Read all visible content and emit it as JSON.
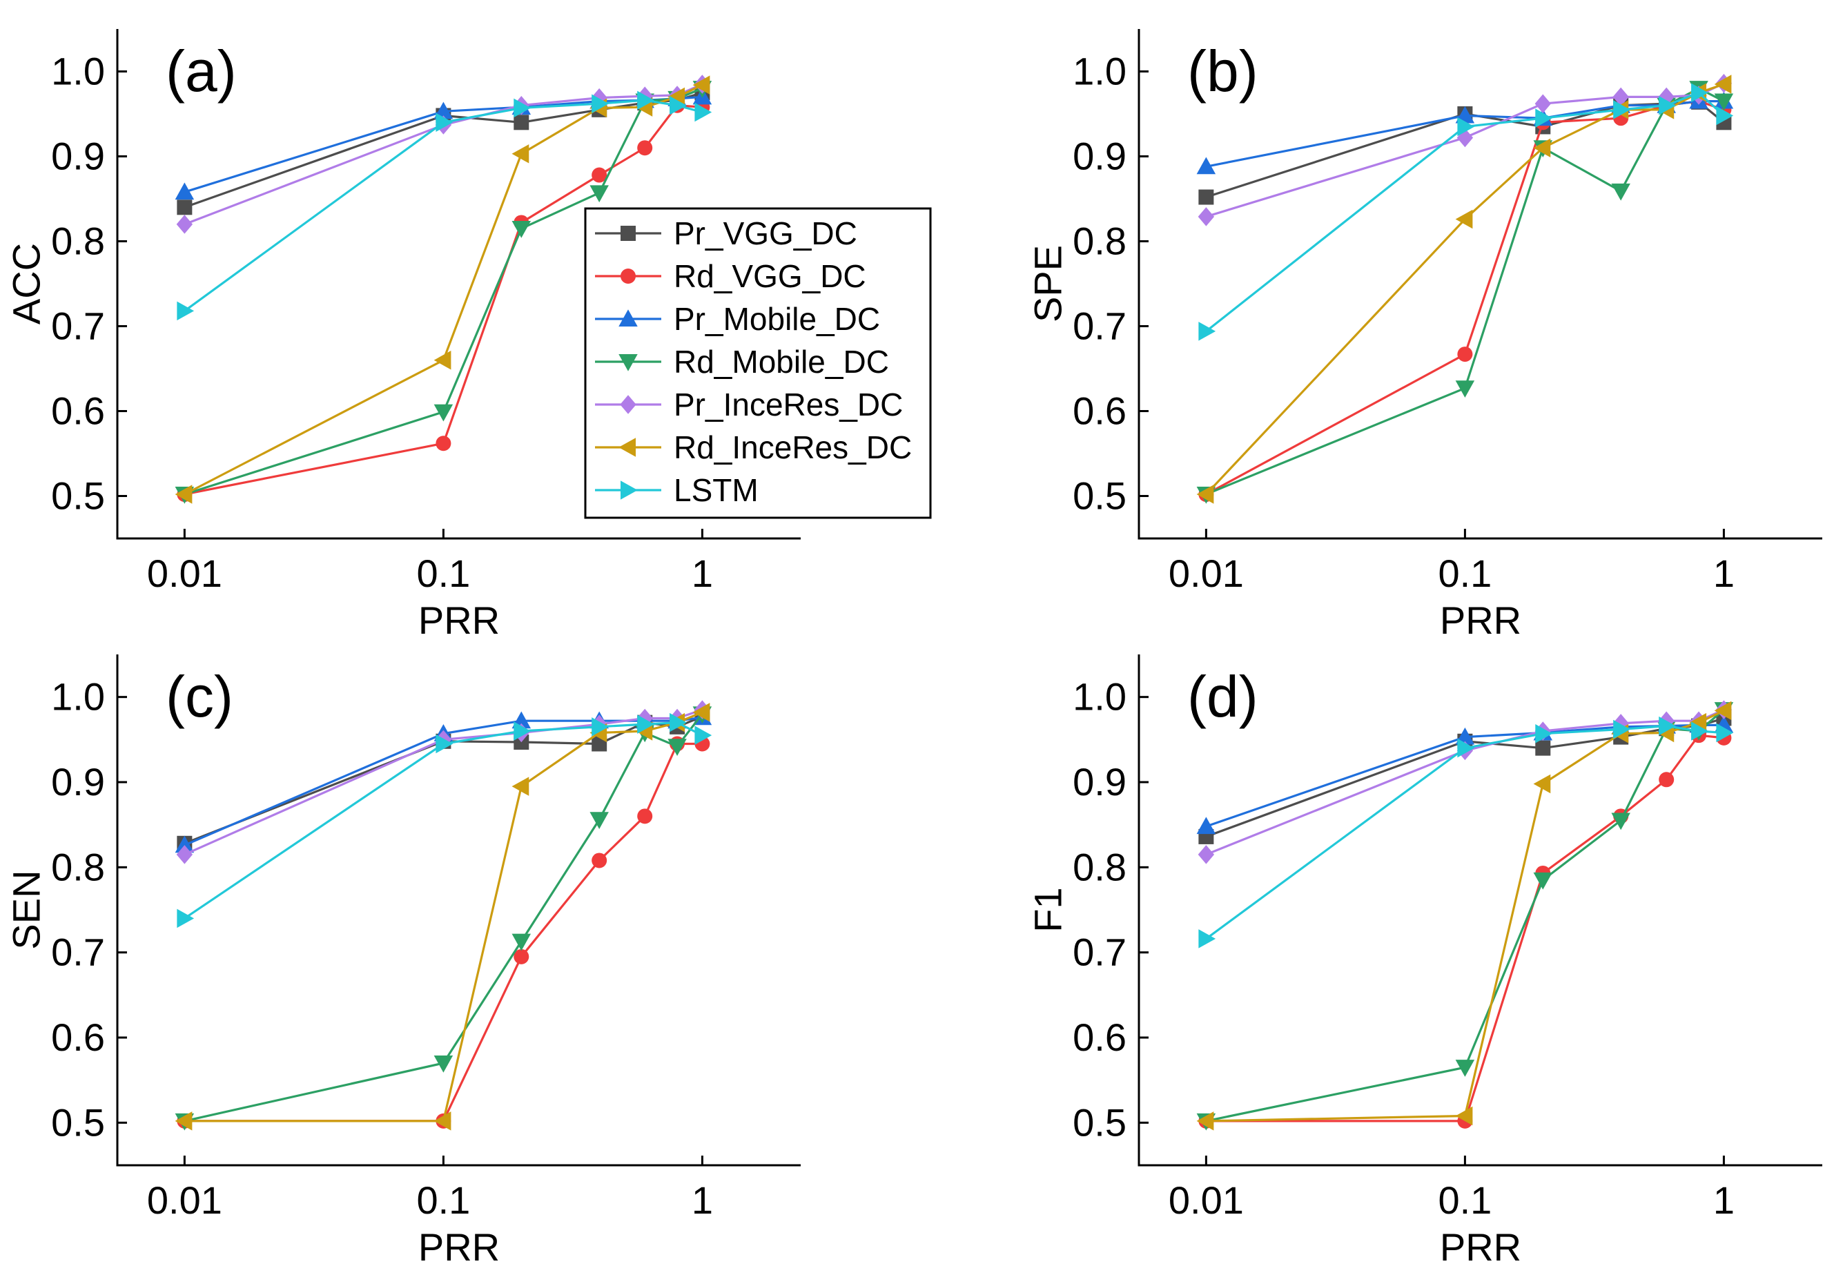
{
  "chart_data": [
    {
      "type": "line",
      "panel_label": "(a)",
      "xlabel": "PRR",
      "ylabel": "ACC",
      "xscale": "log",
      "xlim": [
        0.0055,
        2.4
      ],
      "ylim": [
        0.45,
        1.05
      ],
      "xticks": [
        0.01,
        0.1,
        1
      ],
      "xtick_labels": [
        "0.01",
        "0.1",
        "1"
      ],
      "yticks": [
        0.5,
        0.6,
        0.7,
        0.8,
        0.9,
        1.0
      ],
      "ytick_labels": [
        "0.5",
        "0.6",
        "0.7",
        "0.8",
        "0.9",
        "1.0"
      ],
      "legend_position": "center-right",
      "series": [
        {
          "name": "Pr_VGG_DC",
          "x": [
            0.01,
            0.1,
            0.2,
            0.4,
            0.6,
            0.8,
            1
          ],
          "y": [
            0.84,
            0.948,
            0.94,
            0.955,
            0.963,
            0.966,
            0.975
          ]
        },
        {
          "name": "Rd_VGG_DC",
          "x": [
            0.01,
            0.1,
            0.2,
            0.4,
            0.6,
            0.8,
            1
          ],
          "y": [
            0.502,
            0.562,
            0.822,
            0.878,
            0.91,
            0.96,
            0.958
          ]
        },
        {
          "name": "Pr_Mobile_DC",
          "x": [
            0.01,
            0.1,
            0.2,
            0.4,
            0.6,
            0.8,
            1
          ],
          "y": [
            0.858,
            0.953,
            0.958,
            0.965,
            0.966,
            0.968,
            0.97
          ]
        },
        {
          "name": "Rd_Mobile_DC",
          "x": [
            0.01,
            0.1,
            0.2,
            0.4,
            0.6,
            0.8,
            1
          ],
          "y": [
            0.502,
            0.599,
            0.815,
            0.857,
            0.965,
            0.968,
            0.98
          ]
        },
        {
          "name": "Pr_InceRes_DC",
          "x": [
            0.01,
            0.1,
            0.2,
            0.4,
            0.6,
            0.8,
            1
          ],
          "y": [
            0.82,
            0.937,
            0.96,
            0.969,
            0.971,
            0.972,
            0.985
          ]
        },
        {
          "name": "Rd_InceRes_DC",
          "x": [
            0.01,
            0.1,
            0.2,
            0.4,
            0.6,
            0.8,
            1
          ],
          "y": [
            0.502,
            0.66,
            0.903,
            0.957,
            0.958,
            0.97,
            0.984
          ]
        },
        {
          "name": "LSTM",
          "x": [
            0.01,
            0.1,
            0.2,
            0.4,
            0.6,
            0.8,
            1
          ],
          "y": [
            0.718,
            0.94,
            0.957,
            0.962,
            0.966,
            0.96,
            0.952
          ]
        }
      ]
    },
    {
      "type": "line",
      "panel_label": "(b)",
      "xlabel": "PRR",
      "ylabel": "SPE",
      "xscale": "log",
      "xlim": [
        0.0055,
        2.4
      ],
      "ylim": [
        0.45,
        1.05
      ],
      "xticks": [
        0.01,
        0.1,
        1
      ],
      "xtick_labels": [
        "0.01",
        "0.1",
        "1"
      ],
      "yticks": [
        0.5,
        0.6,
        0.7,
        0.8,
        0.9,
        1.0
      ],
      "ytick_labels": [
        "0.5",
        "0.6",
        "0.7",
        "0.8",
        "0.9",
        "1.0"
      ],
      "series": [
        {
          "name": "Pr_VGG_DC",
          "x": [
            0.01,
            0.1,
            0.2,
            0.4,
            0.6,
            0.8,
            1
          ],
          "y": [
            0.852,
            0.95,
            0.935,
            0.96,
            0.962,
            0.964,
            0.94
          ]
        },
        {
          "name": "Rd_VGG_DC",
          "x": [
            0.01,
            0.1,
            0.2,
            0.4,
            0.6,
            0.8,
            1
          ],
          "y": [
            0.502,
            0.667,
            0.94,
            0.945,
            0.96,
            0.965,
            0.955
          ]
        },
        {
          "name": "Pr_Mobile_DC",
          "x": [
            0.01,
            0.1,
            0.2,
            0.4,
            0.6,
            0.8,
            1
          ],
          "y": [
            0.888,
            0.948,
            0.945,
            0.96,
            0.96,
            0.965,
            0.965
          ]
        },
        {
          "name": "Rd_Mobile_DC",
          "x": [
            0.01,
            0.1,
            0.2,
            0.4,
            0.6,
            0.8,
            1
          ],
          "y": [
            0.502,
            0.627,
            0.91,
            0.859,
            0.96,
            0.98,
            0.965
          ]
        },
        {
          "name": "Pr_InceRes_DC",
          "x": [
            0.01,
            0.1,
            0.2,
            0.4,
            0.6,
            0.8,
            1
          ],
          "y": [
            0.829,
            0.922,
            0.962,
            0.97,
            0.97,
            0.972,
            0.986
          ]
        },
        {
          "name": "Rd_InceRes_DC",
          "x": [
            0.01,
            0.1,
            0.2,
            0.4,
            0.6,
            0.8,
            1
          ],
          "y": [
            0.502,
            0.826,
            0.91,
            0.955,
            0.955,
            0.975,
            0.985
          ]
        },
        {
          "name": "LSTM",
          "x": [
            0.01,
            0.1,
            0.2,
            0.4,
            0.6,
            0.8,
            1
          ],
          "y": [
            0.694,
            0.935,
            0.945,
            0.955,
            0.96,
            0.975,
            0.948
          ]
        }
      ]
    },
    {
      "type": "line",
      "panel_label": "(c)",
      "xlabel": "PRR",
      "ylabel": "SEN",
      "xscale": "log",
      "xlim": [
        0.0055,
        2.4
      ],
      "ylim": [
        0.45,
        1.05
      ],
      "xticks": [
        0.01,
        0.1,
        1
      ],
      "xtick_labels": [
        "0.01",
        "0.1",
        "1"
      ],
      "yticks": [
        0.5,
        0.6,
        0.7,
        0.8,
        0.9,
        1.0
      ],
      "ytick_labels": [
        "0.5",
        "0.6",
        "0.7",
        "0.8",
        "0.9",
        "1.0"
      ],
      "series": [
        {
          "name": "Pr_VGG_DC",
          "x": [
            0.01,
            0.1,
            0.2,
            0.4,
            0.6,
            0.8,
            1
          ],
          "y": [
            0.828,
            0.948,
            0.947,
            0.945,
            0.97,
            0.965,
            0.977
          ]
        },
        {
          "name": "Rd_VGG_DC",
          "x": [
            0.01,
            0.1,
            0.2,
            0.4,
            0.6,
            0.8,
            1
          ],
          "y": [
            0.502,
            0.502,
            0.695,
            0.808,
            0.86,
            0.945,
            0.945
          ]
        },
        {
          "name": "Pr_Mobile_DC",
          "x": [
            0.01,
            0.1,
            0.2,
            0.4,
            0.6,
            0.8,
            1
          ],
          "y": [
            0.826,
            0.957,
            0.972,
            0.972,
            0.972,
            0.972,
            0.976
          ]
        },
        {
          "name": "Rd_Mobile_DC",
          "x": [
            0.01,
            0.1,
            0.2,
            0.4,
            0.6,
            0.8,
            1
          ],
          "y": [
            0.502,
            0.57,
            0.713,
            0.856,
            0.958,
            0.942,
            0.98
          ]
        },
        {
          "name": "Pr_InceRes_DC",
          "x": [
            0.01,
            0.1,
            0.2,
            0.4,
            0.6,
            0.8,
            1
          ],
          "y": [
            0.815,
            0.95,
            0.958,
            0.968,
            0.975,
            0.975,
            0.985
          ]
        },
        {
          "name": "Rd_InceRes_DC",
          "x": [
            0.01,
            0.1,
            0.2,
            0.4,
            0.6,
            0.8,
            1
          ],
          "y": [
            0.502,
            0.502,
            0.895,
            0.958,
            0.96,
            0.97,
            0.982
          ]
        },
        {
          "name": "LSTM",
          "x": [
            0.01,
            0.1,
            0.2,
            0.4,
            0.6,
            0.8,
            1
          ],
          "y": [
            0.74,
            0.945,
            0.96,
            0.965,
            0.968,
            0.97,
            0.955
          ]
        }
      ]
    },
    {
      "type": "line",
      "panel_label": "(d)",
      "xlabel": "PRR",
      "ylabel": "F1",
      "xscale": "log",
      "xlim": [
        0.0055,
        2.4
      ],
      "ylim": [
        0.45,
        1.05
      ],
      "xticks": [
        0.01,
        0.1,
        1
      ],
      "xtick_labels": [
        "0.01",
        "0.1",
        "1"
      ],
      "yticks": [
        0.5,
        0.6,
        0.7,
        0.8,
        0.9,
        1.0
      ],
      "ytick_labels": [
        "0.5",
        "0.6",
        "0.7",
        "0.8",
        "0.9",
        "1.0"
      ],
      "series": [
        {
          "name": "Pr_VGG_DC",
          "x": [
            0.01,
            0.1,
            0.2,
            0.4,
            0.6,
            0.8,
            1
          ],
          "y": [
            0.836,
            0.948,
            0.94,
            0.953,
            0.963,
            0.966,
            0.975
          ]
        },
        {
          "name": "Rd_VGG_DC",
          "x": [
            0.01,
            0.1,
            0.2,
            0.4,
            0.6,
            0.8,
            1
          ],
          "y": [
            0.502,
            0.502,
            0.793,
            0.86,
            0.903,
            0.955,
            0.952
          ]
        },
        {
          "name": "Pr_Mobile_DC",
          "x": [
            0.01,
            0.1,
            0.2,
            0.4,
            0.6,
            0.8,
            1
          ],
          "y": [
            0.848,
            0.953,
            0.958,
            0.965,
            0.966,
            0.967,
            0.967
          ]
        },
        {
          "name": "Rd_Mobile_DC",
          "x": [
            0.01,
            0.1,
            0.2,
            0.4,
            0.6,
            0.8,
            1
          ],
          "y": [
            0.502,
            0.565,
            0.785,
            0.855,
            0.963,
            0.96,
            0.985
          ]
        },
        {
          "name": "Pr_InceRes_DC",
          "x": [
            0.01,
            0.1,
            0.2,
            0.4,
            0.6,
            0.8,
            1
          ],
          "y": [
            0.815,
            0.937,
            0.96,
            0.969,
            0.972,
            0.972,
            0.985
          ]
        },
        {
          "name": "Rd_InceRes_DC",
          "x": [
            0.01,
            0.1,
            0.2,
            0.4,
            0.6,
            0.8,
            1
          ],
          "y": [
            0.502,
            0.508,
            0.898,
            0.957,
            0.958,
            0.97,
            0.984
          ]
        },
        {
          "name": "LSTM",
          "x": [
            0.01,
            0.1,
            0.2,
            0.4,
            0.6,
            0.8,
            1
          ],
          "y": [
            0.716,
            0.94,
            0.957,
            0.962,
            0.966,
            0.96,
            0.958
          ]
        }
      ]
    }
  ],
  "series_styles": [
    {
      "name": "Pr_VGG_DC",
      "color": "#4d4d4d",
      "marker": "square"
    },
    {
      "name": "Rd_VGG_DC",
      "color": "#ef3b3b",
      "marker": "circle"
    },
    {
      "name": "Pr_Mobile_DC",
      "color": "#1f6fdc",
      "marker": "triangle-up"
    },
    {
      "name": "Rd_Mobile_DC",
      "color": "#2ca064",
      "marker": "triangle-down"
    },
    {
      "name": "Pr_InceRes_DC",
      "color": "#b07ce8",
      "marker": "diamond"
    },
    {
      "name": "Rd_InceRes_DC",
      "color": "#cc9c10",
      "marker": "triangle-left"
    },
    {
      "name": "LSTM",
      "color": "#22c8d8",
      "marker": "triangle-right"
    }
  ]
}
